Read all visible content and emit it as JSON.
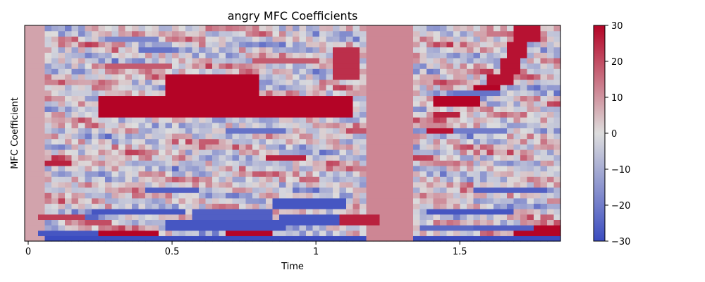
{
  "chart_data": {
    "type": "heatmap",
    "title": "angry MFC Coefficients",
    "xlabel": "Time",
    "ylabel": "MFC Coefficient",
    "x_ticks": [
      0,
      0.5,
      1,
      1.5
    ],
    "x_tick_labels": [
      "0",
      "0.5",
      "1",
      "1.5"
    ],
    "xlim": [
      0,
      1.85
    ],
    "n_frames": 80,
    "n_coefficients": 40,
    "colormap": "coolwarm",
    "colorbar": {
      "vmin": -30,
      "vmax": 30,
      "ticks": [
        30,
        20,
        10,
        0,
        -10,
        -20,
        -30
      ],
      "tick_labels": [
        "30",
        "20",
        "10",
        "0",
        "−10",
        "−20",
        "−30"
      ]
    },
    "colors": {
      "cold": "#3b4cc0",
      "neutral": "#dddddd",
      "warm": "#b40426"
    },
    "features": [
      {
        "t0": 0.0,
        "t1": 1.85,
        "c0": 0,
        "c1": 0.6,
        "v": -30
      },
      {
        "t0": 0.0,
        "t1": 0.05,
        "c0": 0,
        "c1": 40,
        "v": 8
      },
      {
        "t0": 1.18,
        "t1": 1.32,
        "c0": 0,
        "c1": 40,
        "v": 12
      },
      {
        "t0": 0.26,
        "t1": 1.12,
        "c0": 23,
        "c1": 27,
        "v": 30
      },
      {
        "t0": 0.5,
        "t1": 0.8,
        "c0": 27,
        "c1": 31,
        "v": 30
      },
      {
        "t0": 0.27,
        "t1": 0.45,
        "c0": 1,
        "c1": 2,
        "v": 30
      },
      {
        "t0": 0.7,
        "t1": 0.85,
        "c0": 1,
        "c1": 2,
        "v": 30
      },
      {
        "t0": 1.7,
        "t1": 1.85,
        "c0": 1,
        "c1": 3,
        "v": 30
      },
      {
        "t0": 0.06,
        "t1": 0.25,
        "c0": 1,
        "c1": 2,
        "v": -28
      },
      {
        "t0": 0.5,
        "t1": 0.9,
        "c0": 2,
        "c1": 4,
        "v": -28
      },
      {
        "t0": 0.9,
        "t1": 1.1,
        "c0": 3,
        "c1": 5,
        "v": -28
      },
      {
        "t0": 0.25,
        "t1": 0.55,
        "c0": 5,
        "c1": 6,
        "v": -28
      },
      {
        "t0": 0.6,
        "t1": 0.85,
        "c0": 4,
        "c1": 6,
        "v": -26
      },
      {
        "t0": 0.87,
        "t1": 1.1,
        "c0": 6,
        "c1": 8,
        "v": -28
      },
      {
        "t0": 1.4,
        "t1": 1.68,
        "c0": 5,
        "c1": 6,
        "v": -28
      },
      {
        "t0": 0.42,
        "t1": 0.58,
        "c0": 9,
        "c1": 10,
        "v": -26
      },
      {
        "t0": 1.55,
        "t1": 1.8,
        "c0": 9,
        "c1": 10,
        "v": -26
      },
      {
        "t0": 0.1,
        "t1": 0.25,
        "c0": 4,
        "c1": 5,
        "v": -25
      },
      {
        "t0": 1.38,
        "t1": 1.55,
        "c0": 2,
        "c1": 3,
        "v": -24
      },
      {
        "t0": 1.55,
        "t1": 1.75,
        "c0": 2,
        "c1": 3,
        "v": -26
      },
      {
        "t0": 0.05,
        "t1": 0.2,
        "c0": 4,
        "c1": 5,
        "v": 22
      },
      {
        "t0": 0.22,
        "t1": 0.3,
        "c0": 3,
        "c1": 4,
        "v": 20
      },
      {
        "t0": 1.1,
        "t1": 1.22,
        "c0": 3,
        "c1": 5,
        "v": 26
      },
      {
        "t0": 0.85,
        "t1": 0.95,
        "c0": 15,
        "c1": 16,
        "v": 26
      },
      {
        "t0": 1.42,
        "t1": 1.55,
        "c0": 25,
        "c1": 27,
        "v": 30
      },
      {
        "t0": 1.55,
        "t1": 1.62,
        "c0": 27,
        "c1": 29,
        "v": 30
      },
      {
        "t0": 1.6,
        "t1": 1.68,
        "c0": 29,
        "c1": 31,
        "v": 28
      },
      {
        "t0": 1.65,
        "t1": 1.7,
        "c0": 31,
        "c1": 34,
        "v": 28
      },
      {
        "t0": 1.68,
        "t1": 1.73,
        "c0": 34,
        "c1": 37,
        "v": 28
      },
      {
        "t0": 1.71,
        "t1": 1.76,
        "c0": 37,
        "c1": 40,
        "v": 28
      },
      {
        "t0": 1.4,
        "t1": 1.5,
        "c0": 20,
        "c1": 21,
        "v": 28
      },
      {
        "t0": 1.42,
        "t1": 1.5,
        "c0": 23,
        "c1": 24,
        "v": 26
      },
      {
        "t0": 0.07,
        "t1": 0.15,
        "c0": 14,
        "c1": 15,
        "v": 26
      },
      {
        "t0": 1.08,
        "t1": 1.14,
        "c0": 30,
        "c1": 36,
        "v": 24
      },
      {
        "t0": 0.3,
        "t1": 0.5,
        "c0": 32,
        "c1": 33,
        "v": 18
      },
      {
        "t0": 0.8,
        "t1": 1.0,
        "c0": 33,
        "c1": 34,
        "v": 18
      },
      {
        "t0": 0.7,
        "t1": 0.9,
        "c0": 20,
        "c1": 21,
        "v": -22
      },
      {
        "t0": 1.5,
        "t1": 1.65,
        "c0": 20,
        "c1": 21,
        "v": -20
      },
      {
        "t0": 0.4,
        "t1": 0.5,
        "c0": 35,
        "c1": 36,
        "v": -22
      },
      {
        "t0": 0.3,
        "t1": 0.45,
        "c0": 37,
        "c1": 38,
        "v": -18
      },
      {
        "t0": 1.5,
        "t1": 1.62,
        "c0": 27,
        "c1": 28,
        "v": -22
      }
    ]
  }
}
